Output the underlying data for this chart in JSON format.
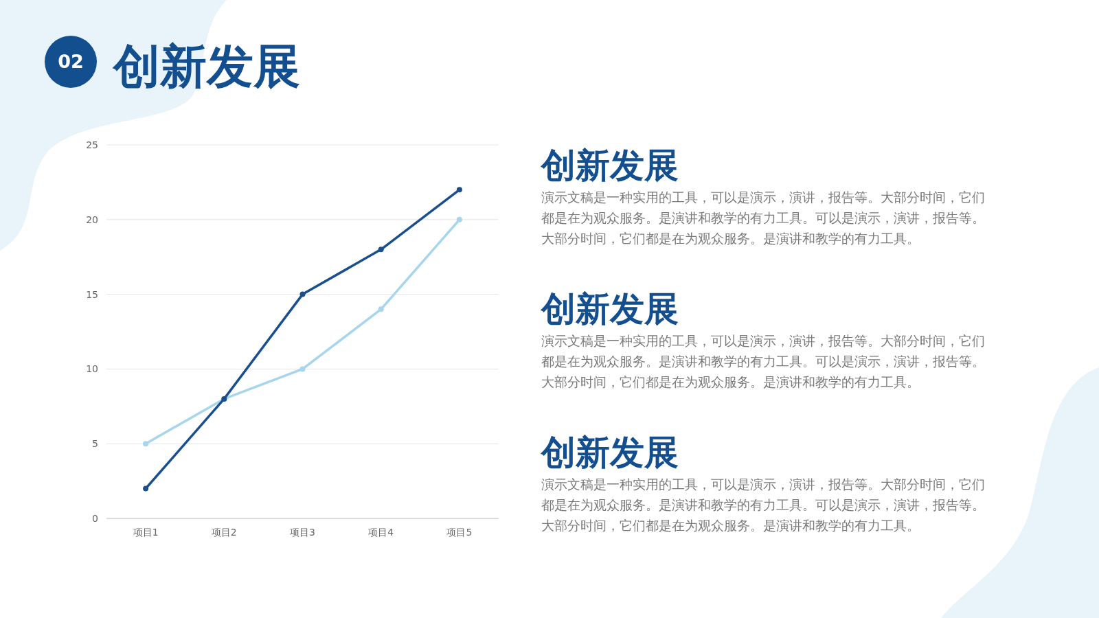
{
  "chart_data": [
    {
      "type": "line",
      "title": "创新发展",
      "annotations": [
        "02"
      ],
      "categories": [
        "项目1",
        "项目2",
        "项目3",
        "项目4",
        "项目5"
      ],
      "series": [
        {
          "color": "#a6d5ec",
          "values": [
            5,
            8,
            10,
            14,
            20
          ]
        },
        {
          "color": "#1a4f8f",
          "values": [
            2,
            8,
            15,
            18,
            22
          ]
        }
      ],
      "ylim": [
        0,
        25
      ],
      "yticks": [
        0,
        5,
        10,
        15,
        20,
        25
      ],
      "grid": "y",
      "marker": "circle",
      "line_style": "solid"
    },
    {
      "type": "other",
      "annotations": [
        "创新发展",
        "演示文稿是一种实用的工具，可以是演示，演讲，报告等。大部分时间，它们都是在为观众服务。是演讲和教学的有力工具。可以是演示，演讲，报告等。大部分时间，它们都是在为观众服务。是演讲和教学的有力工具。",
        "创新发展",
        "演示文稿是一种实用的工具，可以是演示，演讲，报告等。大部分时间，它们都是在为观众服务。是演讲和教学的有力工具。可以是演示，演讲，报告等。大部分时间，它们都是在为观众服务。是演讲和教学的有力工具。",
        "创新发展",
        "演示文稿是一种实用的工具，可以是演示，演讲，报告等。大部分时间，它们都是在为观众服务。是演讲和教学的有力工具。可以是演示，演讲，报告等。大部分时间，它们都是在为观众服务。是演讲和教学的有力工具。"
      ]
    }
  ]
}
